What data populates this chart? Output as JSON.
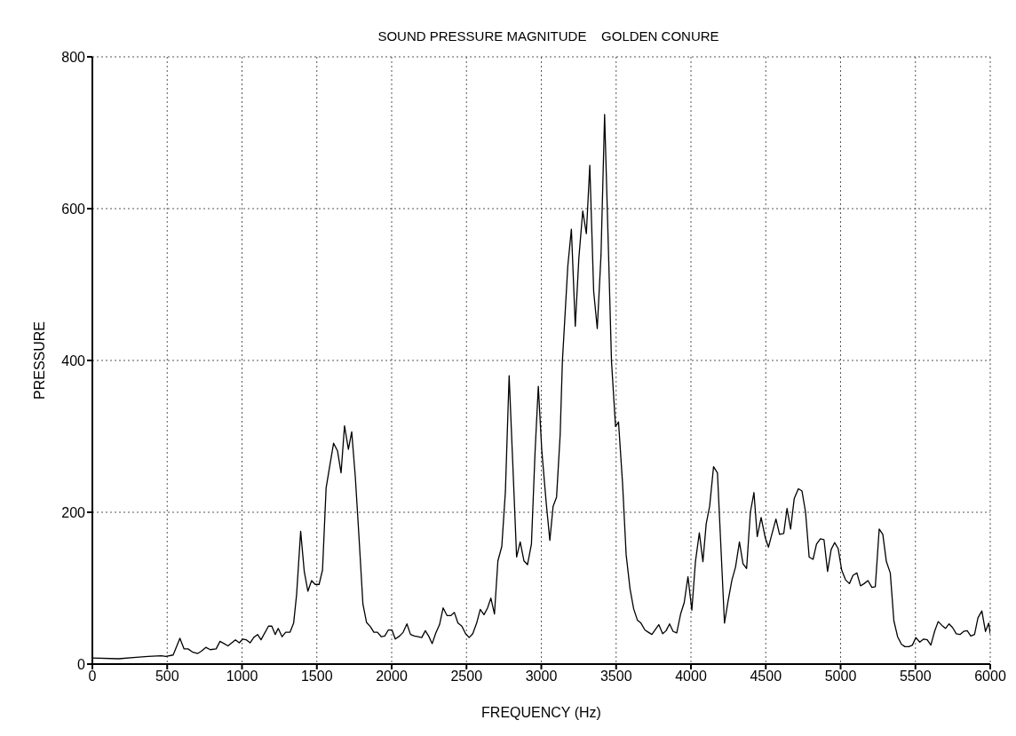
{
  "chart_data": {
    "type": "line",
    "title": "SOUND PRESSURE MAGNITUDE    GOLDEN CONURE",
    "xlabel": "FREQUENCY (Hz)",
    "ylabel": "PRESSURE",
    "x": [
      0,
      174,
      293,
      372,
      461,
      491,
      540,
      585,
      613,
      639,
      668,
      704,
      728,
      758,
      788,
      827,
      853,
      906,
      956,
      982,
      1005,
      1029,
      1054,
      1078,
      1104,
      1127,
      1177,
      1199,
      1222,
      1242,
      1268,
      1292,
      1321,
      1345,
      1365,
      1392,
      1416,
      1440,
      1465,
      1489,
      1515,
      1538,
      1562,
      1588,
      1612,
      1638,
      1662,
      1685,
      1711,
      1733,
      1757,
      1780,
      1808,
      1832,
      1859,
      1881,
      1905,
      1931,
      1954,
      1978,
      2002,
      2024,
      2053,
      2077,
      2102,
      2126,
      2152,
      2176,
      2201,
      2225,
      2247,
      2271,
      2295,
      2320,
      2344,
      2370,
      2396,
      2419,
      2443,
      2469,
      2494,
      2518,
      2542,
      2568,
      2592,
      2617,
      2641,
      2663,
      2687,
      2710,
      2736,
      2760,
      2785,
      2809,
      2835,
      2859,
      2884,
      2908,
      2934,
      2958,
      2980,
      3003,
      3033,
      3057,
      3079,
      3102,
      3126,
      3141,
      3177,
      3201,
      3227,
      3251,
      3277,
      3301,
      3324,
      3350,
      3374,
      3399,
      3423,
      3449,
      3469,
      3496,
      3516,
      3543,
      3567,
      3593,
      3617,
      3642,
      3666,
      3692,
      3715,
      3739,
      3764,
      3785,
      3811,
      3834,
      3857,
      3881,
      3905,
      3931,
      3955,
      3980,
      4006,
      4030,
      4056,
      4080,
      4102,
      4125,
      4151,
      4177,
      4224,
      4248,
      4274,
      4298,
      4324,
      4348,
      4372,
      4397,
      4421,
      4443,
      4469,
      4497,
      4518,
      4542,
      4568,
      4592,
      4620,
      4642,
      4666,
      4690,
      4718,
      4742,
      4766,
      4790,
      4816,
      4839,
      4865,
      4889,
      4913,
      4937,
      4960,
      4984,
      5007,
      5033,
      5059,
      5083,
      5109,
      5133,
      5157,
      5183,
      5209,
      5232,
      5258,
      5282,
      5306,
      5332,
      5356,
      5381,
      5407,
      5430,
      5456,
      5480,
      5503,
      5529,
      5555,
      5579,
      5603,
      5628,
      5652,
      5677,
      5701,
      5725,
      5749,
      5773,
      5798,
      5822,
      5846,
      5870,
      5895,
      5918,
      5944,
      5968,
      5990,
      6000
    ],
    "values": [
      8,
      7,
      9,
      10,
      11,
      10,
      12,
      34,
      20,
      20,
      16,
      14,
      17,
      22,
      19,
      20,
      30,
      24,
      32,
      28,
      33,
      32,
      28,
      35,
      39,
      32,
      50,
      50,
      39,
      47,
      36,
      42,
      42,
      54,
      92,
      175,
      122,
      96,
      110,
      105,
      105,
      124,
      232,
      263,
      291,
      281,
      252,
      314,
      283,
      306,
      247,
      173,
      79,
      55,
      49,
      42,
      42,
      36,
      37,
      45,
      45,
      33,
      37,
      42,
      53,
      39,
      37,
      36,
      35,
      44,
      37,
      27,
      41,
      52,
      74,
      64,
      64,
      68,
      54,
      50,
      40,
      35,
      40,
      54,
      72,
      65,
      74,
      87,
      66,
      136,
      155,
      227,
      380,
      266,
      141,
      161,
      136,
      131,
      158,
      278,
      366,
      282,
      212,
      163,
      208,
      220,
      302,
      399,
      524,
      573,
      445,
      535,
      597,
      567,
      657,
      491,
      442,
      539,
      724,
      543,
      399,
      313,
      319,
      238,
      144,
      99,
      73,
      58,
      54,
      45,
      42,
      39,
      46,
      52,
      40,
      44,
      53,
      43,
      41,
      66,
      81,
      115,
      71,
      135,
      173,
      135,
      185,
      208,
      260,
      252,
      54,
      83,
      111,
      128,
      161,
      132,
      126,
      200,
      226,
      168,
      193,
      166,
      154,
      172,
      191,
      171,
      172,
      205,
      178,
      218,
      231,
      228,
      200,
      141,
      138,
      158,
      165,
      164,
      122,
      151,
      160,
      152,
      124,
      111,
      106,
      117,
      120,
      103,
      106,
      110,
      101,
      102,
      178,
      171,
      135,
      120,
      57,
      36,
      26,
      23,
      23,
      25,
      35,
      29,
      33,
      32,
      25,
      43,
      56,
      51,
      47,
      53,
      48,
      40,
      39,
      43,
      44,
      37,
      39,
      61,
      70,
      43,
      54,
      40
    ],
    "color": "#000000",
    "xlim": [
      0,
      6000
    ],
    "ylim": [
      0,
      800
    ],
    "xticks": [
      0,
      500,
      1000,
      1500,
      2000,
      2500,
      3000,
      3500,
      4000,
      4500,
      5000,
      5500,
      6000
    ],
    "yticks": [
      0,
      200,
      400,
      600,
      800
    ],
    "grid": true,
    "marker": "none",
    "line_style": "solid"
  }
}
